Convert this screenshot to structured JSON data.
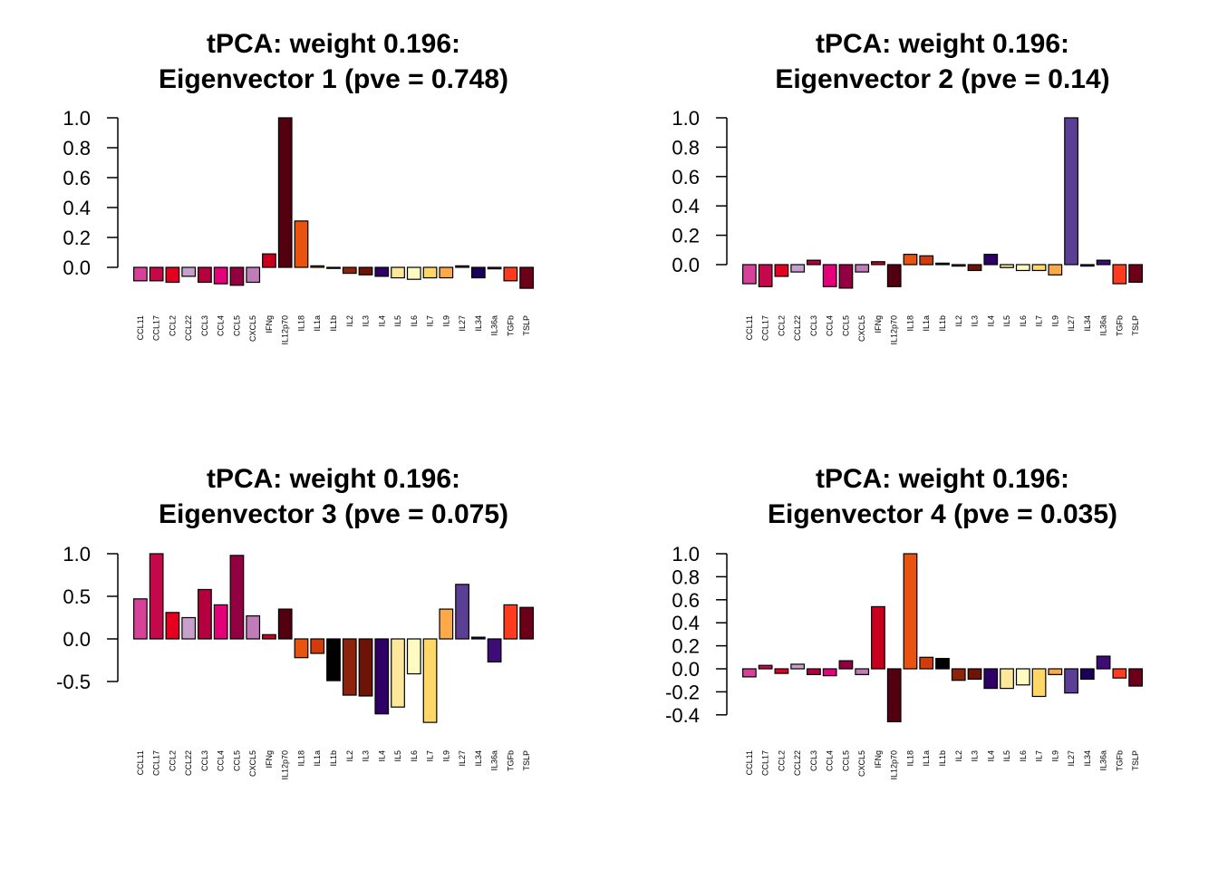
{
  "categories": [
    "CCL11",
    "CCL17",
    "CCL2",
    "CCL22",
    "CCL3",
    "CCL4",
    "CCL5",
    "CXCL5",
    "IFNg",
    "IL12p70",
    "IL18",
    "IL1a",
    "IL1b",
    "IL2",
    "IL3",
    "IL4",
    "IL5",
    "IL6",
    "IL7",
    "IL9",
    "IL27",
    "IL34",
    "IL36a",
    "TGFb",
    "TSLP"
  ],
  "colors": [
    "#d6429a",
    "#c5084a",
    "#e4001e",
    "#c7a1cb",
    "#b4003e",
    "#e3007a",
    "#930041",
    "#c07cb9",
    "#c8001e",
    "#52000f",
    "#e8540f",
    "#d33b0d",
    "#000000",
    "#8c230a",
    "#6e1407",
    "#2e0065",
    "#fde79a",
    "#fdfbc2",
    "#fed766",
    "#fca949",
    "#5b3f95",
    "#1a0057",
    "#3e0c77",
    "#ff3b1f",
    "#6c0018"
  ],
  "chart_data": [
    {
      "type": "bar",
      "title": "tPCA: weight 0.196:\nEigenvector 1 (pve = 0.748)",
      "title_lines": [
        "tPCA: weight 0.196:",
        "Eigenvector 1 (pve = 0.748)"
      ],
      "ylim": [
        -0.13,
        1.0
      ],
      "yticks": [
        0.0,
        0.2,
        0.4,
        0.6,
        0.8,
        1.0
      ],
      "ytick_labels": [
        "0.0",
        "0.2",
        "0.4",
        "0.6",
        "0.8",
        "1.0"
      ],
      "values": [
        -0.09,
        -0.09,
        -0.1,
        -0.06,
        -0.1,
        -0.11,
        -0.12,
        -0.1,
        0.09,
        1.0,
        0.31,
        0.01,
        0.0,
        -0.04,
        -0.05,
        -0.06,
        -0.07,
        -0.08,
        -0.07,
        -0.07,
        0.01,
        -0.07,
        -0.01,
        -0.09,
        -0.14
      ]
    },
    {
      "type": "bar",
      "title": "tPCA: weight 0.196:\nEigenvector 2 (pve = 0.14)",
      "title_lines": [
        "tPCA: weight 0.196:",
        "Eigenvector 2 (pve = 0.14)"
      ],
      "ylim": [
        -0.16,
        1.0
      ],
      "yticks": [
        0.0,
        0.2,
        0.4,
        0.6,
        0.8,
        1.0
      ],
      "ytick_labels": [
        "0.0",
        "0.2",
        "0.4",
        "0.6",
        "0.8",
        "1.0"
      ],
      "values": [
        -0.13,
        -0.15,
        -0.08,
        -0.05,
        0.03,
        -0.15,
        -0.16,
        -0.05,
        0.02,
        -0.15,
        0.07,
        0.06,
        0.01,
        -0.01,
        -0.04,
        0.07,
        -0.02,
        -0.04,
        -0.04,
        -0.07,
        1.0,
        -0.01,
        0.03,
        -0.13,
        -0.12
      ]
    },
    {
      "type": "bar",
      "title": "tPCA: weight 0.196:\nEigenvector 3 (pve = 0.075)",
      "title_lines": [
        "tPCA: weight 0.196:",
        "Eigenvector 3 (pve = 0.075)"
      ],
      "ylim": [
        -0.98,
        1.0
      ],
      "yticks": [
        -0.5,
        0.0,
        0.5,
        1.0
      ],
      "ytick_labels": [
        "-0.5",
        "0.0",
        "0.5",
        "1.0"
      ],
      "values": [
        0.47,
        1.0,
        0.31,
        0.25,
        0.58,
        0.4,
        0.98,
        0.27,
        0.05,
        0.35,
        -0.22,
        -0.17,
        -0.49,
        -0.66,
        -0.67,
        -0.88,
        -0.8,
        -0.41,
        -0.98,
        0.35,
        0.64,
        0.02,
        -0.27,
        0.4,
        0.37
      ]
    },
    {
      "type": "bar",
      "title": "tPCA: weight 0.196:\nEigenvector 4 (pve = 0.035)",
      "title_lines": [
        "tPCA: weight 0.196:",
        "Eigenvector 4 (pve = 0.035)"
      ],
      "ylim": [
        -0.46,
        1.0
      ],
      "yticks": [
        -0.4,
        -0.2,
        0.0,
        0.2,
        0.4,
        0.6,
        0.8,
        1.0
      ],
      "ytick_labels": [
        "-0.4",
        "-0.2",
        "0.0",
        "0.2",
        "0.4",
        "0.6",
        "0.8",
        "1.0"
      ],
      "values": [
        -0.07,
        0.03,
        -0.04,
        0.04,
        -0.05,
        -0.06,
        0.07,
        -0.05,
        0.54,
        -0.46,
        1.0,
        0.1,
        0.09,
        -0.1,
        -0.09,
        -0.17,
        -0.17,
        -0.14,
        -0.24,
        -0.05,
        -0.21,
        -0.09,
        0.11,
        -0.08,
        -0.15
      ]
    }
  ]
}
